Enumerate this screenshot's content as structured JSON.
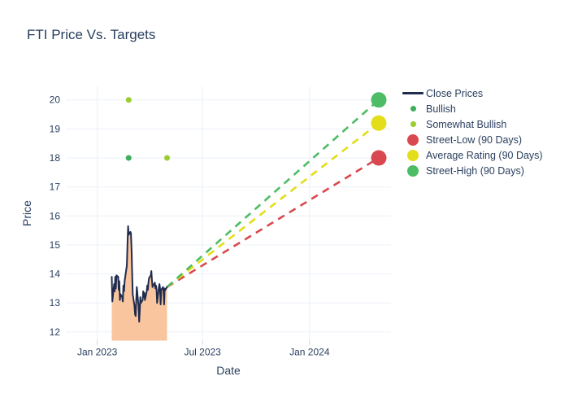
{
  "chart_data": {
    "type": "line",
    "title": "FTI Price Vs. Targets",
    "xlabel": "Date",
    "ylabel": "Price",
    "grid": true,
    "legend_position": "top-right",
    "background": "#ffffff",
    "grid_color": "#ebf0f8",
    "text_color": "#2a3f5f",
    "ylim": [
      11.7,
      20.47
    ],
    "xlim": [
      "2022-11-08",
      "2024-05-20"
    ],
    "y_ticks": [
      12,
      13,
      14,
      15,
      16,
      17,
      18,
      19,
      20
    ],
    "x_ticks": [
      {
        "label": "Jan 2023",
        "date": "2023-01-01"
      },
      {
        "label": "Jul 2023",
        "date": "2023-07-01"
      },
      {
        "label": "Jan 2024",
        "date": "2024-01-01"
      }
    ],
    "series": [
      {
        "name": "Close Prices",
        "type": "line",
        "color": "#1f2c4e",
        "fill_color": "#f9c59e",
        "points": [
          [
            "2023-01-26",
            13.9
          ],
          [
            "2023-01-27",
            13.05
          ],
          [
            "2023-01-30",
            13.65
          ],
          [
            "2023-01-31",
            13.4
          ],
          [
            "2023-02-01",
            13.9
          ],
          [
            "2023-02-02",
            13.5
          ],
          [
            "2023-02-03",
            13.95
          ],
          [
            "2023-02-06",
            13.9
          ],
          [
            "2023-02-07",
            13.45
          ],
          [
            "2023-02-08",
            13.75
          ],
          [
            "2023-02-09",
            13.1
          ],
          [
            "2023-02-10",
            13.3
          ],
          [
            "2023-02-13",
            13.2
          ],
          [
            "2023-02-14",
            13.05
          ],
          [
            "2023-02-15",
            13.6
          ],
          [
            "2023-02-16",
            13.4
          ],
          [
            "2023-02-17",
            13.75
          ],
          [
            "2023-02-21",
            14.3
          ],
          [
            "2023-02-22",
            15.0
          ],
          [
            "2023-02-23",
            15.65
          ],
          [
            "2023-02-24",
            15.35
          ],
          [
            "2023-02-27",
            15.45
          ],
          [
            "2023-02-28",
            15.4
          ],
          [
            "2023-03-01",
            14.8
          ],
          [
            "2023-03-02",
            14.0
          ],
          [
            "2023-03-03",
            13.3
          ],
          [
            "2023-03-06",
            12.9
          ],
          [
            "2023-03-07",
            12.6
          ],
          [
            "2023-03-08",
            12.55
          ],
          [
            "2023-03-09",
            13.1
          ],
          [
            "2023-03-10",
            13.55
          ],
          [
            "2023-03-13",
            12.9
          ],
          [
            "2023-03-14",
            12.35
          ],
          [
            "2023-03-15",
            12.7
          ],
          [
            "2023-03-16",
            13.2
          ],
          [
            "2023-03-17",
            13.0
          ],
          [
            "2023-03-20",
            13.1
          ],
          [
            "2023-03-21",
            13.4
          ],
          [
            "2023-03-22",
            13.2
          ],
          [
            "2023-03-23",
            13.35
          ],
          [
            "2023-03-24",
            13.1
          ],
          [
            "2023-03-27",
            13.4
          ],
          [
            "2023-03-28",
            13.6
          ],
          [
            "2023-03-29",
            13.45
          ],
          [
            "2023-03-30",
            13.7
          ],
          [
            "2023-03-31",
            13.85
          ],
          [
            "2023-04-03",
            13.95
          ],
          [
            "2023-04-04",
            14.1
          ],
          [
            "2023-04-05",
            13.8
          ],
          [
            "2023-04-06",
            13.55
          ],
          [
            "2023-04-10",
            13.7
          ],
          [
            "2023-04-11",
            13.5
          ],
          [
            "2023-04-12",
            13.6
          ],
          [
            "2023-04-13",
            13.45
          ],
          [
            "2023-04-14",
            13.0
          ],
          [
            "2023-04-17",
            13.55
          ],
          [
            "2023-04-18",
            13.65
          ],
          [
            "2023-04-19",
            13.5
          ],
          [
            "2023-04-20",
            12.95
          ],
          [
            "2023-04-21",
            13.45
          ],
          [
            "2023-04-24",
            13.55
          ],
          [
            "2023-04-25",
            13.4
          ],
          [
            "2023-04-26",
            12.95
          ],
          [
            "2023-04-27",
            13.5
          ],
          [
            "2023-04-28",
            13.45
          ],
          [
            "2023-05-01",
            13.55
          ]
        ]
      },
      {
        "name": "Bullish",
        "type": "scatter",
        "color": "#3fae5c",
        "marker_size": 7,
        "points": [
          [
            "2023-02-24",
            18
          ]
        ]
      },
      {
        "name": "Somewhat Bullish",
        "type": "scatter",
        "color": "#9acd32",
        "marker_size": 7,
        "points": [
          [
            "2023-02-24",
            20
          ],
          [
            "2023-05-01",
            18
          ]
        ]
      },
      {
        "name": "Street-Low (90 Days)",
        "type": "target",
        "color": "#d9484f",
        "marker_size": 19,
        "line_from": [
          "2023-05-01",
          13.55
        ],
        "point": [
          "2024-04-29",
          18
        ]
      },
      {
        "name": "Average Rating (90 Days)",
        "type": "target",
        "color": "#e3de19",
        "marker_size": 19,
        "line_from": [
          "2023-05-01",
          13.55
        ],
        "point": [
          "2024-04-29",
          19.2
        ]
      },
      {
        "name": "Street-High (90 Days)",
        "type": "target",
        "color": "#4cbd64",
        "marker_size": 19,
        "line_from": [
          "2023-05-01",
          13.55
        ],
        "point": [
          "2024-04-29",
          20
        ]
      }
    ]
  }
}
